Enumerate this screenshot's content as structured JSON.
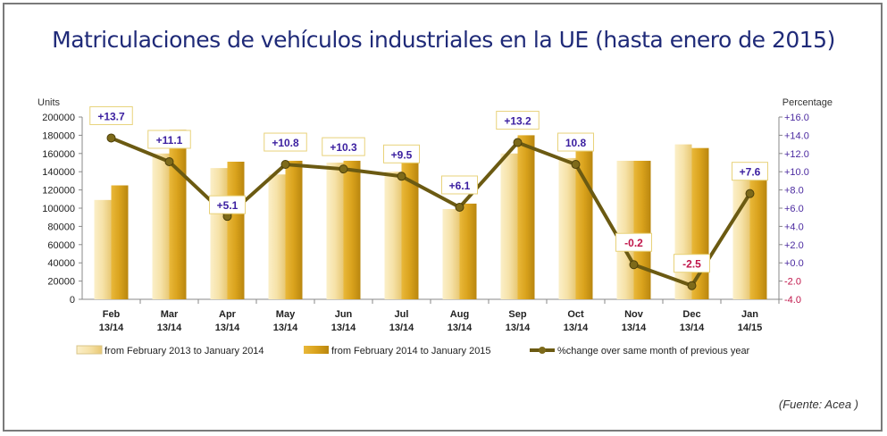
{
  "title": "Matriculaciones de vehículos industriales en la UE (hasta enero de 2015)",
  "source": "(Fuente: Acea )",
  "chart_data": {
    "type": "bar",
    "title": "Matriculaciones de vehículos industriales en la UE (hasta enero de 2015)",
    "ylabel": "Units",
    "y2label": "Percentage",
    "ylim": [
      0,
      200000
    ],
    "y2lim": [
      -4,
      16
    ],
    "yticks": [
      "0",
      "20000",
      "40000",
      "60000",
      "80000",
      "100000",
      "120000",
      "140000",
      "160000",
      "180000",
      "200000"
    ],
    "y2ticks": [
      "-4.0",
      "-2.0",
      "+0.0",
      "+2.0",
      "+4.0",
      "+6.0",
      "+8.0",
      "+10.0",
      "+12.0",
      "+14.0",
      "+16.0"
    ],
    "categories": [
      [
        "Feb",
        "13/14"
      ],
      [
        "Mar",
        "13/14"
      ],
      [
        "Apr",
        "13/14"
      ],
      [
        "May",
        "13/14"
      ],
      [
        "Jun",
        "13/14"
      ],
      [
        "Jul",
        "13/14"
      ],
      [
        "Aug",
        "13/14"
      ],
      [
        "Sep",
        "13/14"
      ],
      [
        "Oct",
        "13/14"
      ],
      [
        "Nov",
        "13/14"
      ],
      [
        "Dec",
        "13/14"
      ],
      [
        "Jan",
        "14/15"
      ]
    ],
    "series": [
      {
        "name": "from February 2013 to January 2014",
        "type": "bar",
        "color": "#f3dc9a",
        "values": [
          109000,
          160000,
          144000,
          137000,
          150000,
          140000,
          99000,
          160000,
          155000,
          152000,
          170000,
          134000
        ]
      },
      {
        "name": "from February 2014 to January 2015",
        "type": "bar",
        "color": "#d9a21c",
        "values": [
          125000,
          186000,
          151000,
          152000,
          152000,
          153000,
          105000,
          180000,
          176000,
          152000,
          166000,
          143000
        ]
      },
      {
        "name": "%change over same month of previous year",
        "type": "line",
        "axis": "right",
        "color": "#6b5a12",
        "values": [
          13.7,
          11.1,
          5.1,
          10.8,
          10.3,
          9.5,
          6.1,
          13.2,
          10.8,
          -0.2,
          -2.5,
          7.6
        ],
        "labels": [
          "+13.7",
          "+11.1",
          "+5.1",
          "+10.8",
          "+10.3",
          "+9.5",
          "+6.1",
          "+13.2",
          "10.8",
          "-0.2",
          "-2.5",
          "+7.6"
        ]
      }
    ],
    "legend": "bottom",
    "grid": false
  }
}
